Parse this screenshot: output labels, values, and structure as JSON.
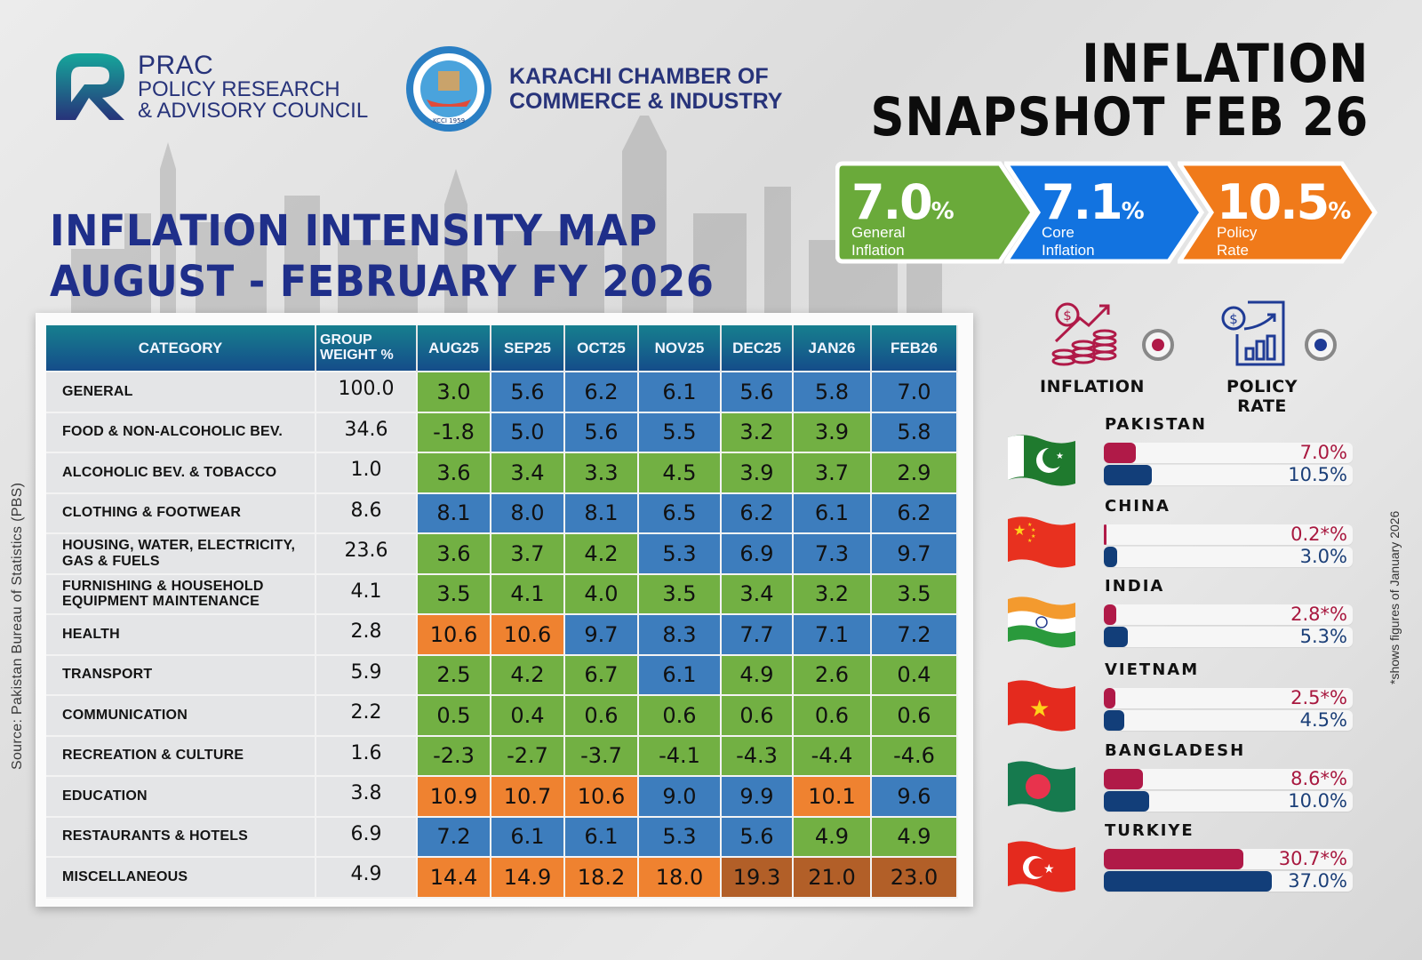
{
  "logos": {
    "prac": {
      "line1": "PRAC",
      "line2": "POLICY RESEARCH",
      "line3": "& ADVISORY COUNCIL"
    },
    "kcci": {
      "line1": "KARACHI CHAMBER OF",
      "line2": "COMMERCE & INDUSTRY",
      "seal_text": "KCCI 1959"
    }
  },
  "snapshot": {
    "title_line1": "INFLATION",
    "title_line2": "SNAPSHOT FEB 26",
    "kpis": [
      {
        "value": "7.0",
        "unit": "%",
        "label": "General Inflation",
        "color": "#6aaa3a"
      },
      {
        "value": "7.1",
        "unit": "%",
        "label": "Core Inflation",
        "color": "#1273e0"
      },
      {
        "value": "10.5",
        "unit": "%",
        "label": "Policy Rate",
        "color": "#f07a1a"
      }
    ]
  },
  "main_title": {
    "line1": "INFLATION INTENSITY MAP",
    "line2": "AUGUST - FEBRUARY FY 2026"
  },
  "source": "Source: Pakistan Bureau of Statistics (PBS)",
  "footnote": "*shows  figures of January 2026",
  "legend": {
    "inflation": {
      "label": "INFLATION",
      "color": "#b01a48",
      "icon": "coins-growth-icon"
    },
    "policy_rate": {
      "label": "POLICY RATE",
      "color": "#1f3b95",
      "icon": "report-chart-icon"
    }
  },
  "colors": {
    "green": "#72b043",
    "blue": "#3d7dbd",
    "orange": "#ef8230",
    "dark_orange": "#b25f28"
  },
  "chart_data": [
    {
      "type": "heatmap",
      "title": "INFLATION INTENSITY MAP AUGUST - FEBRUARY FY 2026",
      "columns": [
        "CATEGORY",
        "GROUP WEIGHT %",
        "AUG25",
        "SEP25",
        "OCT25",
        "NOV25",
        "DEC25",
        "JAN26",
        "FEB26"
      ],
      "months": [
        "AUG25",
        "SEP25",
        "OCT25",
        "NOV25",
        "DEC25",
        "JAN26",
        "FEB26"
      ],
      "rows": [
        {
          "category": "GENERAL",
          "weight": "100.0",
          "values": [
            "3.0",
            "5.6",
            "6.2",
            "6.1",
            "5.6",
            "5.8",
            "7.0"
          ],
          "bands": [
            "g",
            "b",
            "b",
            "b",
            "b",
            "b",
            "b"
          ]
        },
        {
          "category": "FOOD & NON-ALCOHOLIC BEV.",
          "weight": "34.6",
          "values": [
            "-1.8",
            "5.0",
            "5.6",
            "5.5",
            "3.2",
            "3.9",
            "5.8"
          ],
          "bands": [
            "g",
            "b",
            "b",
            "b",
            "g",
            "g",
            "b"
          ]
        },
        {
          "category": "ALCOHOLIC BEV. & TOBACCO",
          "weight": "1.0",
          "values": [
            "3.6",
            "3.4",
            "3.3",
            "4.5",
            "3.9",
            "3.7",
            "2.9"
          ],
          "bands": [
            "g",
            "g",
            "g",
            "g",
            "g",
            "g",
            "g"
          ]
        },
        {
          "category": "CLOTHING & FOOTWEAR",
          "weight": "8.6",
          "values": [
            "8.1",
            "8.0",
            "8.1",
            "6.5",
            "6.2",
            "6.1",
            "6.2"
          ],
          "bands": [
            "b",
            "b",
            "b",
            "b",
            "b",
            "b",
            "b"
          ]
        },
        {
          "category": "HOUSING, WATER, ELECTRICITY, GAS & FUELS",
          "weight": "23.6",
          "values": [
            "3.6",
            "3.7",
            "4.2",
            "5.3",
            "6.9",
            "7.3",
            "9.7"
          ],
          "bands": [
            "g",
            "g",
            "g",
            "b",
            "b",
            "b",
            "b"
          ]
        },
        {
          "category": "FURNISHING & HOUSEHOLD EQUIPMENT MAINTENANCE",
          "weight": "4.1",
          "values": [
            "3.5",
            "4.1",
            "4.0",
            "3.5",
            "3.4",
            "3.2",
            "3.5"
          ],
          "bands": [
            "g",
            "g",
            "g",
            "g",
            "g",
            "g",
            "g"
          ]
        },
        {
          "category": "HEALTH",
          "weight": "2.8",
          "values": [
            "10.6",
            "10.6",
            "9.7",
            "8.3",
            "7.7",
            "7.1",
            "7.2"
          ],
          "bands": [
            "o",
            "o",
            "b",
            "b",
            "b",
            "b",
            "b"
          ]
        },
        {
          "category": "TRANSPORT",
          "weight": "5.9",
          "values": [
            "2.5",
            "4.2",
            "6.7",
            "6.1",
            "4.9",
            "2.6",
            "0.4"
          ],
          "bands": [
            "g",
            "g",
            "g",
            "b",
            "g",
            "g",
            "g"
          ]
        },
        {
          "category": "COMMUNICATION",
          "weight": "2.2",
          "values": [
            "0.5",
            "0.4",
            "0.6",
            "0.6",
            "0.6",
            "0.6",
            "0.6"
          ],
          "bands": [
            "g",
            "g",
            "g",
            "g",
            "g",
            "g",
            "g"
          ]
        },
        {
          "category": "RECREATION & CULTURE",
          "weight": "1.6",
          "values": [
            "-2.3",
            "-2.7",
            "-3.7",
            "-4.1",
            "-4.3",
            "-4.4",
            "-4.6"
          ],
          "bands": [
            "g",
            "g",
            "g",
            "g",
            "g",
            "g",
            "g"
          ]
        },
        {
          "category": "EDUCATION",
          "weight": "3.8",
          "values": [
            "10.9",
            "10.7",
            "10.6",
            "9.0",
            "9.9",
            "10.1",
            "9.6"
          ],
          "bands": [
            "o",
            "o",
            "o",
            "b",
            "b",
            "o",
            "b"
          ]
        },
        {
          "category": "RESTAURANTS & HOTELS",
          "weight": "6.9",
          "values": [
            "7.2",
            "6.1",
            "6.1",
            "5.3",
            "5.6",
            "4.9",
            "4.9"
          ],
          "bands": [
            "b",
            "b",
            "b",
            "b",
            "b",
            "g",
            "g"
          ]
        },
        {
          "category": "MISCELLANEOUS",
          "weight": "4.9",
          "values": [
            "14.4",
            "14.9",
            "18.2",
            "18.0",
            "19.3",
            "21.0",
            "23.0"
          ],
          "bands": [
            "o",
            "o",
            "o",
            "o",
            "d",
            "d",
            "d"
          ]
        }
      ]
    },
    {
      "type": "bar",
      "title": "Inflation vs Policy Rate by Country",
      "categories": [
        "PAKISTAN",
        "CHINA",
        "INDIA",
        "VIETNAM",
        "BANGLADESH",
        "TURKIYE"
      ],
      "series": [
        {
          "name": "INFLATION",
          "values": [
            7.0,
            0.2,
            2.8,
            2.5,
            8.6,
            30.7
          ],
          "labels": [
            "7.0%",
            "0.2*%",
            "2.8*%",
            "2.5*%",
            "8.6*%",
            "30.7*%"
          ]
        },
        {
          "name": "POLICY RATE",
          "values": [
            10.5,
            3.0,
            5.3,
            4.5,
            10.0,
            37.0
          ],
          "labels": [
            "10.5%",
            "3.0%",
            "5.3%",
            "4.5%",
            "10.0%",
            "37.0%"
          ]
        }
      ],
      "xlim": [
        0,
        52
      ]
    }
  ]
}
